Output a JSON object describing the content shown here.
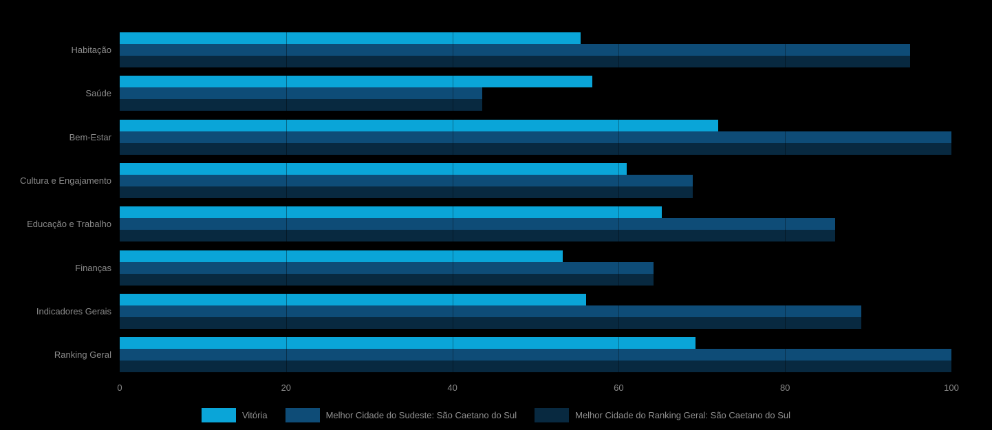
{
  "chart_data": {
    "type": "bar",
    "orientation": "horizontal",
    "title": "",
    "xlabel": "",
    "ylabel": "",
    "xlim": [
      0,
      100
    ],
    "xticks": [
      0,
      20,
      40,
      60,
      80,
      100
    ],
    "grid": "faint vertical gridlines visible over bars only",
    "legend_position": "bottom-center",
    "background_color": "#000000",
    "label_color": "#8B8B8B",
    "categories": [
      "Habitação",
      "Saúde",
      "Bem-Estar",
      "Cultura e Engajamento",
      "Educação e Trabalho",
      "Finanças",
      "Indicadores Gerais",
      "Ranking Geral"
    ],
    "series": [
      {
        "name": "Vitória",
        "color": "#0AA5D8",
        "values": [
          55.4,
          56.8,
          72.0,
          61.0,
          65.2,
          53.3,
          56.1,
          69.2
        ]
      },
      {
        "name": "Melhor Cidade do Sudeste: São Caetano do Sul",
        "color": "#0E4C77",
        "values": [
          95.0,
          43.6,
          100.0,
          68.9,
          86.0,
          64.2,
          89.2,
          100.0
        ]
      },
      {
        "name": "Melhor Cidade do Ranking Geral: São Caetano do Sul",
        "color": "#082940",
        "values": [
          95.0,
          43.6,
          100.0,
          68.9,
          86.0,
          64.2,
          89.2,
          100.0
        ]
      }
    ]
  }
}
